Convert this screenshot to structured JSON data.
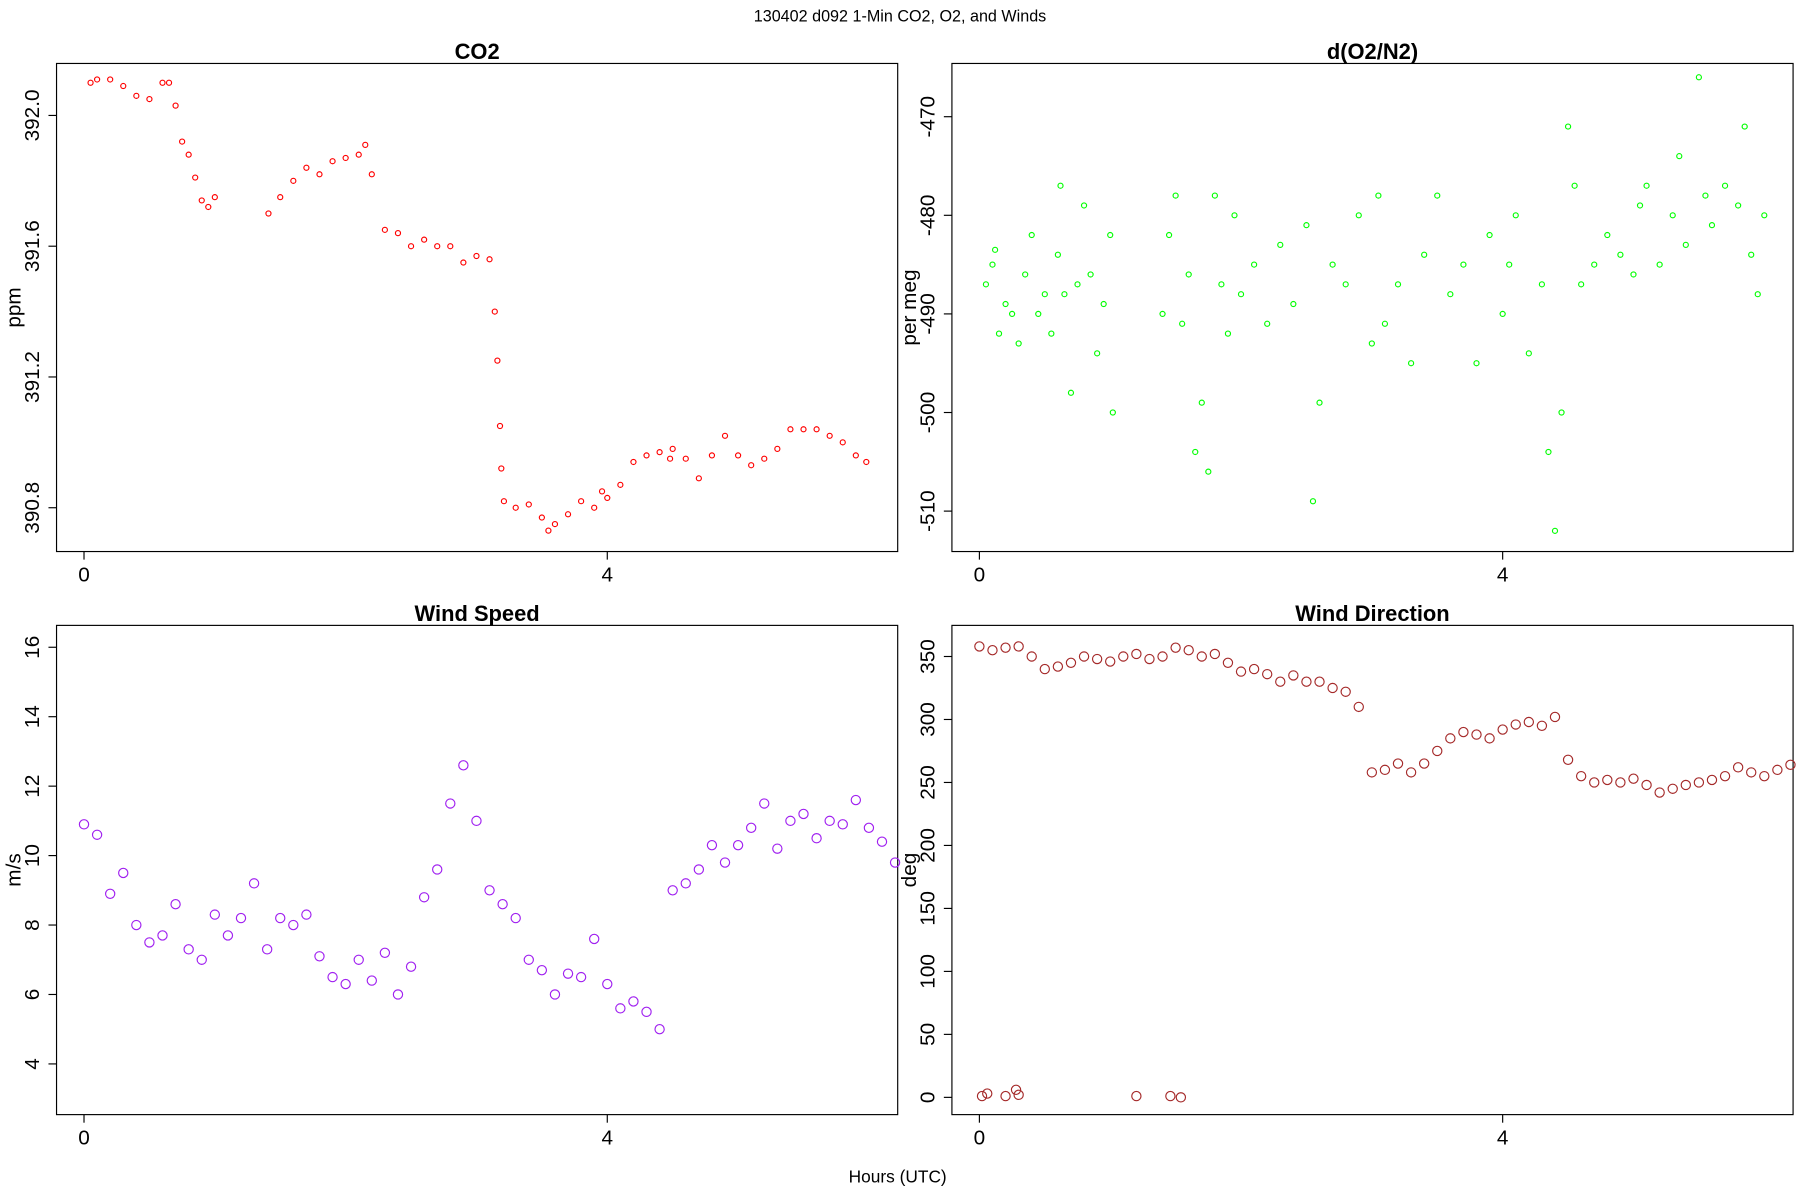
{
  "title": "130402   d092   1-Min CO2, O2, and Winds",
  "x_label": "Hours (UTC)",
  "chart_data": [
    {
      "type": "scatter",
      "title": "CO2",
      "y_label": "ppm",
      "color": "#ff0000",
      "x": [
        0.05,
        0.1,
        0.2,
        0.3,
        0.4,
        0.5,
        0.6,
        0.65,
        0.7,
        0.75,
        0.8,
        0.85,
        0.9,
        0.95,
        1.0,
        1.41,
        1.5,
        1.6,
        1.7,
        1.8,
        1.9,
        2.0,
        2.1,
        2.15,
        2.2,
        2.3,
        2.4,
        2.5,
        2.6,
        2.7,
        2.8,
        2.9,
        3.0,
        3.1,
        3.14,
        3.16,
        3.18,
        3.19,
        3.21,
        3.3,
        3.4,
        3.5,
        3.55,
        3.6,
        3.7,
        3.8,
        3.9,
        3.96,
        4.0,
        4.1,
        4.2,
        4.3,
        4.4,
        4.48,
        4.5,
        4.6,
        4.7,
        4.8,
        4.9,
        5.0,
        5.1,
        5.2,
        5.3,
        5.4,
        5.5,
        5.6,
        5.7,
        5.8,
        5.9,
        5.98
      ],
      "values": [
        392.1,
        392.11,
        392.11,
        392.09,
        392.06,
        392.05,
        392.1,
        392.1,
        392.03,
        391.92,
        391.88,
        391.81,
        391.74,
        391.72,
        391.75,
        391.7,
        391.75,
        391.8,
        391.84,
        391.82,
        391.86,
        391.87,
        391.88,
        391.91,
        391.82,
        391.65,
        391.64,
        391.6,
        391.62,
        391.6,
        391.6,
        391.55,
        391.57,
        391.56,
        391.4,
        391.25,
        391.05,
        390.92,
        390.82,
        390.8,
        390.81,
        390.77,
        390.73,
        390.75,
        390.78,
        390.82,
        390.8,
        390.85,
        390.83,
        390.87,
        390.94,
        390.96,
        390.97,
        390.95,
        390.98,
        390.95,
        390.89,
        390.96,
        391.02,
        390.96,
        390.93,
        390.95,
        390.98,
        391.04,
        391.04,
        391.04,
        391.02,
        391.0,
        390.96,
        390.94
      ],
      "xlim": [
        -0.21,
        6.22
      ],
      "ylim": [
        390.666,
        392.159
      ],
      "xticks": [
        0,
        4
      ],
      "yticks": [
        {
          "value": 390.8,
          "label": "390.8"
        },
        {
          "value": 391.2,
          "label": "391.2"
        },
        {
          "value": 391.6,
          "label": "391.6"
        },
        {
          "value": 392.0,
          "label": "392.0"
        }
      ]
    },
    {
      "type": "scatter",
      "title": "d(O2/N2)",
      "y_label": "per meg",
      "color": "#00ff00",
      "x": [
        0.05,
        0.1,
        0.12,
        0.15,
        0.2,
        0.25,
        0.3,
        0.35,
        0.4,
        0.45,
        0.5,
        0.55,
        0.6,
        0.62,
        0.65,
        0.7,
        0.75,
        0.8,
        0.85,
        0.9,
        0.95,
        1.0,
        1.02,
        1.4,
        1.45,
        1.5,
        1.55,
        1.6,
        1.65,
        1.7,
        1.75,
        1.8,
        1.85,
        1.9,
        1.95,
        2.0,
        2.1,
        2.2,
        2.3,
        2.4,
        2.5,
        2.55,
        2.6,
        2.7,
        2.8,
        2.9,
        3.0,
        3.05,
        3.1,
        3.2,
        3.3,
        3.4,
        3.5,
        3.6,
        3.7,
        3.8,
        3.9,
        4.0,
        4.05,
        4.1,
        4.2,
        4.3,
        4.35,
        4.4,
        4.45,
        4.5,
        4.55,
        4.6,
        4.7,
        4.8,
        4.9,
        5.0,
        5.05,
        5.1,
        5.2,
        5.3,
        5.35,
        5.4,
        5.5,
        5.55,
        5.6,
        5.7,
        5.8,
        5.85,
        5.9,
        5.95,
        6.0
      ],
      "values": [
        -487,
        -485,
        -483.5,
        -492,
        -489,
        -490,
        -493,
        -486,
        -482,
        -490,
        -488,
        -492,
        -484,
        -477,
        -488,
        -498,
        -487,
        -479,
        -486,
        -494,
        -489,
        -482,
        -500,
        -490,
        -482,
        -478,
        -491,
        -486,
        -504,
        -499,
        -506,
        -478,
        -487,
        -492,
        -480,
        -488,
        -485,
        -491,
        -483,
        -489,
        -481,
        -509,
        -499,
        -485,
        -487,
        -480,
        -493,
        -478,
        -491,
        -487,
        -495,
        -484,
        -478,
        -488,
        -485,
        -495,
        -482,
        -490,
        -485,
        -480,
        -494,
        -487,
        -504,
        -512,
        -500,
        -471,
        -477,
        -487,
        -485,
        -482,
        -484,
        -486,
        -479,
        -477,
        -485,
        -480,
        -474,
        -483,
        -466,
        -478,
        -481,
        -477,
        -479,
        -471,
        -484,
        -488,
        -480
      ],
      "xlim": [
        -0.21,
        6.22
      ],
      "ylim": [
        -514.1,
        -464.6
      ],
      "xticks": [
        0,
        4
      ],
      "yticks": [
        -510,
        -500,
        -490,
        -480,
        -470
      ]
    },
    {
      "type": "scatter",
      "title": "Wind Speed",
      "y_label": "m/s",
      "color": "#a020f0",
      "x": [
        0,
        0.1,
        0.2,
        0.3,
        0.4,
        0.5,
        0.6,
        0.7,
        0.8,
        0.9,
        1.0,
        1.1,
        1.2,
        1.3,
        1.4,
        1.5,
        1.6,
        1.7,
        1.8,
        1.9,
        2.0,
        2.1,
        2.2,
        2.3,
        2.4,
        2.5,
        2.6,
        2.7,
        2.8,
        2.9,
        3.0,
        3.1,
        3.2,
        3.3,
        3.4,
        3.5,
        3.6,
        3.7,
        3.8,
        3.9,
        4.0,
        4.1,
        4.2,
        4.3,
        4.4,
        4.5,
        4.6,
        4.7,
        4.8,
        4.9,
        5.0,
        5.1,
        5.2,
        5.3,
        5.4,
        5.5,
        5.6,
        5.7,
        5.8,
        5.9,
        6.0,
        6.1,
        6.2
      ],
      "values": [
        10.9,
        10.6,
        8.9,
        9.5,
        8.0,
        7.5,
        7.7,
        8.6,
        7.3,
        7.0,
        8.3,
        7.7,
        8.2,
        9.2,
        7.3,
        8.2,
        8.0,
        8.3,
        7.1,
        6.5,
        6.3,
        7.0,
        6.4,
        7.2,
        6.0,
        6.8,
        8.8,
        9.6,
        11.5,
        12.6,
        11.0,
        9.0,
        8.6,
        8.2,
        7.0,
        6.7,
        6.0,
        6.6,
        6.5,
        7.6,
        6.3,
        5.6,
        5.8,
        5.5,
        5.0,
        9.0,
        9.2,
        9.6,
        10.3,
        9.8,
        10.3,
        10.8,
        11.5,
        10.2,
        11.0,
        11.2,
        10.5,
        11.0,
        10.9,
        11.6,
        10.8,
        10.4,
        9.8
      ],
      "xlim": [
        -0.21,
        6.22
      ],
      "ylim": [
        2.54,
        16.63
      ],
      "xticks": [
        0,
        4
      ],
      "yticks": [
        4,
        6,
        8,
        10,
        12,
        14,
        16
      ]
    },
    {
      "type": "scatter",
      "title": "Wind Direction",
      "y_label": "deg",
      "color": "#a52a2a",
      "x": [
        0,
        0.1,
        0.2,
        0.3,
        0.4,
        0.5,
        0.6,
        0.7,
        0.8,
        0.9,
        1.0,
        1.1,
        1.2,
        1.3,
        1.4,
        1.5,
        1.6,
        1.7,
        1.8,
        1.9,
        2.0,
        2.1,
        2.2,
        2.3,
        2.4,
        2.5,
        2.6,
        2.7,
        2.8,
        2.9,
        3.0,
        3.1,
        3.2,
        3.3,
        3.4,
        3.5,
        3.6,
        3.7,
        3.8,
        3.9,
        4.0,
        4.1,
        4.2,
        4.3,
        4.4,
        4.5,
        4.6,
        4.7,
        4.8,
        4.9,
        5.0,
        5.1,
        5.2,
        5.3,
        5.4,
        5.5,
        5.6,
        5.7,
        5.8,
        5.9,
        6.0,
        6.1,
        6.2,
        0.02,
        0.06,
        0.2,
        0.28,
        0.3,
        1.2,
        1.46,
        1.54
      ],
      "values": [
        358,
        355,
        357,
        358,
        350,
        340,
        342,
        345,
        350,
        348,
        346,
        350,
        352,
        348,
        350,
        357,
        355,
        350,
        352,
        345,
        338,
        340,
        336,
        330,
        335,
        330,
        330,
        325,
        322,
        310,
        258,
        260,
        265,
        258,
        265,
        275,
        285,
        290,
        288,
        285,
        292,
        296,
        298,
        295,
        302,
        268,
        255,
        250,
        252,
        250,
        253,
        248,
        242,
        245,
        248,
        250,
        252,
        255,
        262,
        258,
        255,
        260,
        264,
        1,
        3,
        1,
        6,
        2,
        1,
        1,
        0
      ],
      "xlim": [
        -0.21,
        6.22
      ],
      "ylim": [
        -13.7,
        374.7
      ],
      "xticks": [
        0,
        4
      ],
      "yticks": [
        0,
        50,
        100,
        150,
        200,
        250,
        300,
        350
      ]
    }
  ]
}
